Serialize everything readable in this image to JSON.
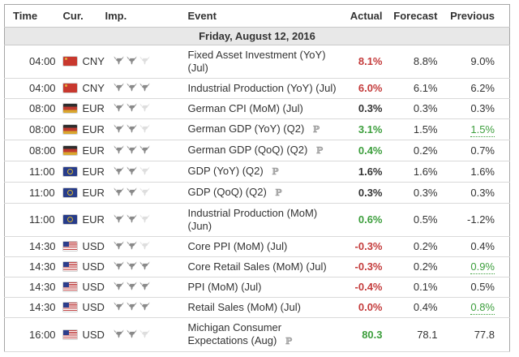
{
  "table": {
    "columns": {
      "time": "Time",
      "currency": "Cur.",
      "importance": "Imp.",
      "event": "Event",
      "actual": "Actual",
      "forecast": "Forecast",
      "previous": "Previous"
    },
    "date_header": "Friday, August 12, 2016",
    "preliminary_marker": "ℙ",
    "importance_max": 3,
    "rows": [
      {
        "time": "04:00",
        "currency": "CNY",
        "flag": "cn",
        "importance": 2,
        "event": "Fixed Asset Investment (YoY) (Jul)",
        "preliminary": false,
        "actual": "8.1%",
        "actual_color": "negative",
        "forecast": "8.8%",
        "previous": "9.0%",
        "previous_color": "neutral"
      },
      {
        "time": "04:00",
        "currency": "CNY",
        "flag": "cn",
        "importance": 3,
        "event": "Industrial Production (YoY) (Jul)",
        "preliminary": false,
        "actual": "6.0%",
        "actual_color": "negative",
        "forecast": "6.1%",
        "previous": "6.2%",
        "previous_color": "neutral"
      },
      {
        "time": "08:00",
        "currency": "EUR",
        "flag": "de",
        "importance": 2,
        "event": "German CPI (MoM) (Jul)",
        "preliminary": false,
        "actual": "0.3%",
        "actual_color": "neutral",
        "forecast": "0.3%",
        "previous": "0.3%",
        "previous_color": "neutral"
      },
      {
        "time": "08:00",
        "currency": "EUR",
        "flag": "de",
        "importance": 2,
        "event": "German GDP (YoY) (Q2)",
        "preliminary": true,
        "actual": "3.1%",
        "actual_color": "positive",
        "forecast": "1.5%",
        "previous": "1.5%",
        "previous_color": "positive"
      },
      {
        "time": "08:00",
        "currency": "EUR",
        "flag": "de",
        "importance": 3,
        "event": "German GDP (QoQ) (Q2)",
        "preliminary": true,
        "actual": "0.4%",
        "actual_color": "positive",
        "forecast": "0.2%",
        "previous": "0.7%",
        "previous_color": "neutral"
      },
      {
        "time": "11:00",
        "currency": "EUR",
        "flag": "eu",
        "importance": 2,
        "event": "GDP (YoY) (Q2)",
        "preliminary": true,
        "actual": "1.6%",
        "actual_color": "neutral",
        "forecast": "1.6%",
        "previous": "1.6%",
        "previous_color": "neutral"
      },
      {
        "time": "11:00",
        "currency": "EUR",
        "flag": "eu",
        "importance": 2,
        "event": "GDP (QoQ) (Q2)",
        "preliminary": true,
        "actual": "0.3%",
        "actual_color": "neutral",
        "forecast": "0.3%",
        "previous": "0.3%",
        "previous_color": "neutral"
      },
      {
        "time": "11:00",
        "currency": "EUR",
        "flag": "eu",
        "importance": 2,
        "event": "Industrial Production (MoM) (Jun)",
        "preliminary": false,
        "actual": "0.6%",
        "actual_color": "positive",
        "forecast": "0.5%",
        "previous": "-1.2%",
        "previous_color": "neutral"
      },
      {
        "time": "14:30",
        "currency": "USD",
        "flag": "us",
        "importance": 2,
        "event": "Core PPI (MoM) (Jul)",
        "preliminary": false,
        "actual": "-0.3%",
        "actual_color": "negative",
        "forecast": "0.2%",
        "previous": "0.4%",
        "previous_color": "neutral"
      },
      {
        "time": "14:30",
        "currency": "USD",
        "flag": "us",
        "importance": 3,
        "event": "Core Retail Sales (MoM) (Jul)",
        "preliminary": false,
        "actual": "-0.3%",
        "actual_color": "negative",
        "forecast": "0.2%",
        "previous": "0.9%",
        "previous_color": "positive"
      },
      {
        "time": "14:30",
        "currency": "USD",
        "flag": "us",
        "importance": 3,
        "event": "PPI (MoM) (Jul)",
        "preliminary": false,
        "actual": "-0.4%",
        "actual_color": "negative",
        "forecast": "0.1%",
        "previous": "0.5%",
        "previous_color": "neutral"
      },
      {
        "time": "14:30",
        "currency": "USD",
        "flag": "us",
        "importance": 3,
        "event": "Retail Sales (MoM) (Jul)",
        "preliminary": false,
        "actual": "0.0%",
        "actual_color": "negative",
        "forecast": "0.4%",
        "previous": "0.8%",
        "previous_color": "positive"
      },
      {
        "time": "16:00",
        "currency": "USD",
        "flag": "us",
        "importance": 2,
        "event": "Michigan Consumer Expectations (Aug)",
        "preliminary": true,
        "actual": "80.3",
        "actual_color": "positive",
        "forecast": "78.1",
        "previous": "77.8",
        "previous_color": "neutral"
      }
    ]
  },
  "colors": {
    "positive": "#3c9e3c",
    "negative": "#c43b3b",
    "neutral_actual": "#333333",
    "text": "#333333",
    "muted": "#999999",
    "date_row_bg": "#e8e8e8",
    "border_outer": "#a6a6a6",
    "border_row": "#d9d9d9",
    "bull_active": "#8a8a8a",
    "bull_inactive": "#dedede"
  }
}
